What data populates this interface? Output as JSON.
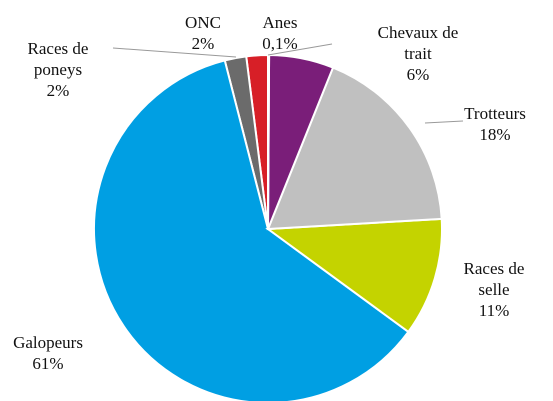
{
  "chart_data": {
    "type": "pie",
    "categories": [
      "Anes",
      "Chevaux de trait",
      "Trotteurs",
      "Races de selle",
      "Galopeurs",
      "Races de poneys",
      "ONC"
    ],
    "values": [
      0.1,
      6,
      18,
      11,
      61,
      2,
      2
    ],
    "value_labels": [
      "0,1%",
      "6%",
      "18%",
      "11%",
      "61%",
      "2%",
      "2%"
    ],
    "colors": [
      "#e8e8e8",
      "#7a1e79",
      "#c0c0c0",
      "#c4d300",
      "#009fe3",
      "#6b6b6b",
      "#d71f27"
    ]
  }
}
